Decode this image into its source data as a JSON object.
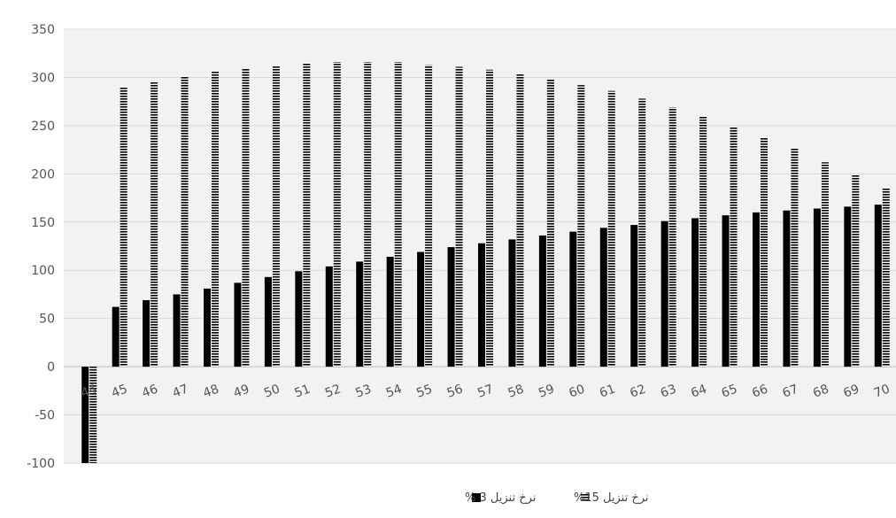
{
  "chart_data": {
    "type": "bar",
    "categories": [
      "44",
      "45",
      "46",
      "47",
      "48",
      "49",
      "50",
      "51",
      "52",
      "53",
      "54",
      "55",
      "56",
      "57",
      "58",
      "59",
      "60",
      "61",
      "62",
      "63",
      "64",
      "65",
      "66",
      "67",
      "68",
      "69",
      "70"
    ],
    "series": [
      {
        "name": "نرخ تنزیل 3 %",
        "color": "#000000",
        "pattern": "solid",
        "values": [
          -100,
          62,
          69,
          75,
          81,
          87,
          93,
          99,
          104,
          109,
          114,
          119,
          124,
          128,
          132,
          136,
          140,
          144,
          147,
          151,
          154,
          157,
          160,
          162,
          164,
          166,
          168
        ]
      },
      {
        "name": "نرخ تنزیل 15%",
        "color": "#000000",
        "pattern": "horizontal-lines",
        "values": [
          -100,
          290,
          296,
          301,
          306,
          309,
          312,
          315,
          316,
          316,
          316,
          313,
          311,
          308,
          304,
          298,
          292,
          286,
          278,
          269,
          260,
          249,
          238,
          226,
          212,
          199,
          185
        ]
      }
    ],
    "yticks": [
      "350",
      "300",
      "250",
      "200",
      "150",
      "100",
      "50",
      "0",
      "-50",
      "-100"
    ],
    "ylim": [
      -100,
      350
    ],
    "grid": true,
    "legend_position": "bottom",
    "title": "",
    "xlabel": "",
    "ylabel": ""
  }
}
